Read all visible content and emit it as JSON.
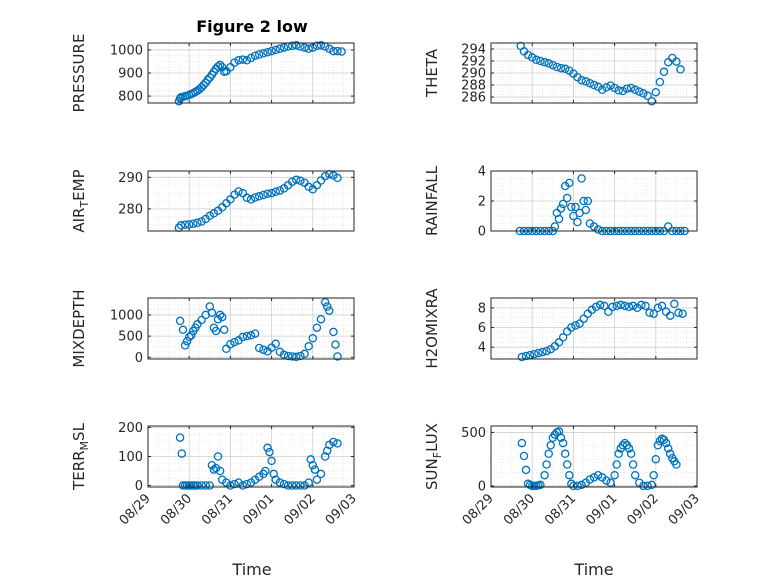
{
  "figure": {
    "title": "Figure 2 low",
    "xlabel": "Time",
    "xticks": [
      "08/29",
      "08/30",
      "08/31",
      "09/01",
      "09/02",
      "09/03"
    ],
    "marker_color": "#0072BD"
  },
  "chart_data": [
    {
      "type": "scatter",
      "ylabel": "PRESSURE",
      "ylabel_sub": "",
      "xlim": [
        0,
        5
      ],
      "ylim": [
        770,
        1030
      ],
      "yticks": [
        800,
        900,
        1000
      ],
      "series": [
        {
          "x": [
            0.75,
            0.78,
            0.8,
            0.85,
            0.9,
            0.95,
            1.0,
            1.05,
            1.1,
            1.15,
            1.2,
            1.25,
            1.3,
            1.35,
            1.4,
            1.45,
            1.5,
            1.55,
            1.6,
            1.65,
            1.7,
            1.75,
            1.8,
            1.85,
            1.9,
            2.0,
            2.1,
            2.2,
            2.3,
            2.4,
            2.5,
            2.6,
            2.7,
            2.8,
            2.9,
            3.0,
            3.1,
            3.2,
            3.3,
            3.4,
            3.5,
            3.6,
            3.7,
            3.8,
            3.9,
            4.0,
            4.1,
            4.2,
            4.3,
            4.4,
            4.5,
            4.6,
            4.7
          ],
          "y": [
            778,
            790,
            795,
            797,
            799,
            801,
            805,
            809,
            813,
            818,
            823,
            830,
            838,
            848,
            858,
            870,
            880,
            892,
            905,
            918,
            928,
            935,
            925,
            905,
            908,
            925,
            945,
            955,
            958,
            955,
            965,
            975,
            980,
            985,
            990,
            995,
            1000,
            1005,
            1010,
            1015,
            1018,
            1020,
            1015,
            1010,
            1005,
            1010,
            1018,
            1020,
            1015,
            1005,
            995,
            995,
            993
          ]
        }
      ]
    },
    {
      "type": "scatter",
      "ylabel": "THETA",
      "ylabel_sub": "",
      "xlim": [
        0,
        5
      ],
      "ylim": [
        285,
        295
      ],
      "yticks": [
        286,
        288,
        290,
        292,
        294
      ],
      "series": [
        {
          "x": [
            0.72,
            0.8,
            0.9,
            1.0,
            1.1,
            1.2,
            1.3,
            1.4,
            1.5,
            1.6,
            1.7,
            1.8,
            1.9,
            2.0,
            2.1,
            2.2,
            2.3,
            2.4,
            2.5,
            2.6,
            2.7,
            2.8,
            2.9,
            3.0,
            3.1,
            3.2,
            3.3,
            3.4,
            3.5,
            3.6,
            3.7,
            3.8,
            3.9,
            4.0,
            4.1,
            4.2,
            4.3,
            4.4,
            4.5,
            4.6
          ],
          "y": [
            294.5,
            293.6,
            293.0,
            292.6,
            292.2,
            292.0,
            291.8,
            291.6,
            291.3,
            291.0,
            290.8,
            290.7,
            290.4,
            289.9,
            289.3,
            288.8,
            288.6,
            288.3,
            288.0,
            287.7,
            287.2,
            287.6,
            287.9,
            287.5,
            287.1,
            287.0,
            287.4,
            287.5,
            287.2,
            286.9,
            286.6,
            286.2,
            285.3,
            286.8,
            288.5,
            290.2,
            291.8,
            292.5,
            291.9,
            290.6
          ]
        }
      ]
    },
    {
      "type": "scatter",
      "ylabel": "AIR",
      "ylabel_sub": "T",
      "ylabel_rest": "EMP",
      "xlim": [
        0,
        5
      ],
      "ylim": [
        273,
        292
      ],
      "yticks": [
        280,
        290
      ],
      "series": [
        {
          "x": [
            0.75,
            0.8,
            0.9,
            1.0,
            1.1,
            1.2,
            1.3,
            1.4,
            1.5,
            1.6,
            1.7,
            1.8,
            1.9,
            2.0,
            2.1,
            2.2,
            2.3,
            2.4,
            2.5,
            2.6,
            2.7,
            2.8,
            2.9,
            3.0,
            3.1,
            3.2,
            3.3,
            3.4,
            3.5,
            3.6,
            3.7,
            3.8,
            3.9,
            4.0,
            4.1,
            4.2,
            4.3,
            4.4,
            4.5,
            4.6
          ],
          "y": [
            274.0,
            274.8,
            275.0,
            275.1,
            275.3,
            275.6,
            276.0,
            276.8,
            277.8,
            278.6,
            279.4,
            280.5,
            281.8,
            283.0,
            284.5,
            285.5,
            285.0,
            283.5,
            283.0,
            283.6,
            284.0,
            284.4,
            284.8,
            285.0,
            285.4,
            285.8,
            286.5,
            287.5,
            288.6,
            289.2,
            288.9,
            288.3,
            287.0,
            286.2,
            287.5,
            289.0,
            290.4,
            291.0,
            290.6,
            289.8
          ]
        }
      ]
    },
    {
      "type": "scatter",
      "ylabel": "RAINFALL",
      "ylabel_sub": "",
      "xlim": [
        0,
        5
      ],
      "ylim": [
        0,
        4
      ],
      "yticks": [
        0,
        2,
        4
      ],
      "series": [
        {
          "x": [
            0.7,
            0.8,
            0.9,
            1.0,
            1.1,
            1.2,
            1.3,
            1.4,
            1.5,
            1.55,
            1.6,
            1.65,
            1.7,
            1.75,
            1.8,
            1.85,
            1.9,
            1.95,
            2.0,
            2.05,
            2.1,
            2.15,
            2.2,
            2.25,
            2.3,
            2.35,
            2.4,
            2.5,
            2.6,
            2.7,
            2.8,
            2.9,
            3.0,
            3.1,
            3.2,
            3.3,
            3.4,
            3.5,
            3.6,
            3.7,
            3.8,
            3.9,
            4.0,
            4.1,
            4.2,
            4.3,
            4.4,
            4.5,
            4.6,
            4.7
          ],
          "y": [
            0,
            0,
            0,
            0,
            0,
            0,
            0,
            0,
            0,
            0.3,
            1.2,
            0.8,
            1.5,
            1.8,
            3.0,
            2.2,
            3.2,
            1.6,
            1.0,
            1.6,
            0.6,
            1.2,
            3.5,
            2.0,
            1.4,
            2.0,
            0.5,
            0.3,
            0.1,
            0,
            0,
            0,
            0,
            0,
            0,
            0,
            0,
            0,
            0,
            0,
            0,
            0,
            0,
            0,
            0,
            0.3,
            0,
            0,
            0,
            0
          ]
        }
      ]
    },
    {
      "type": "scatter",
      "ylabel": "MIXDEPTH",
      "ylabel_sub": "",
      "xlim": [
        0,
        5
      ],
      "ylim": [
        -40,
        1400
      ],
      "yticks": [
        0,
        500,
        1000
      ],
      "series": [
        {
          "x": [
            0.78,
            0.85,
            0.9,
            0.95,
            1.0,
            1.05,
            1.1,
            1.15,
            1.2,
            1.3,
            1.4,
            1.5,
            1.55,
            1.6,
            1.65,
            1.7,
            1.75,
            1.8,
            1.85,
            1.9,
            2.0,
            2.1,
            2.2,
            2.3,
            2.4,
            2.5,
            2.6,
            2.7,
            2.8,
            2.9,
            3.0,
            3.1,
            3.2,
            3.3,
            3.4,
            3.5,
            3.6,
            3.7,
            3.8,
            3.9,
            4.0,
            4.1,
            4.2,
            4.3,
            4.35,
            4.4,
            4.5,
            4.55,
            4.6
          ],
          "y": [
            860,
            650,
            280,
            380,
            480,
            520,
            620,
            700,
            780,
            880,
            1000,
            1200,
            1050,
            700,
            620,
            900,
            1000,
            950,
            650,
            200,
            310,
            360,
            400,
            480,
            500,
            520,
            560,
            220,
            180,
            140,
            230,
            320,
            130,
            60,
            30,
            20,
            10,
            30,
            80,
            260,
            450,
            700,
            900,
            1300,
            1200,
            1100,
            600,
            300,
            20
          ]
        }
      ]
    },
    {
      "type": "scatter",
      "ylabel": "H2OMIXRA",
      "ylabel_sub": "",
      "xlim": [
        0,
        5
      ],
      "ylim": [
        2.8,
        9.0
      ],
      "yticks": [
        4,
        6,
        8
      ],
      "series": [
        {
          "x": [
            0.75,
            0.85,
            0.95,
            1.05,
            1.15,
            1.25,
            1.35,
            1.45,
            1.55,
            1.65,
            1.75,
            1.85,
            1.95,
            2.05,
            2.15,
            2.25,
            2.35,
            2.45,
            2.55,
            2.65,
            2.75,
            2.85,
            2.95,
            3.05,
            3.15,
            3.25,
            3.35,
            3.45,
            3.55,
            3.65,
            3.75,
            3.85,
            3.95,
            4.05,
            4.15,
            4.25,
            4.35,
            4.45,
            4.55,
            4.65
          ],
          "y": [
            3.0,
            3.1,
            3.2,
            3.3,
            3.4,
            3.5,
            3.6,
            3.8,
            4.1,
            4.5,
            5.0,
            5.6,
            6.0,
            6.2,
            6.4,
            6.9,
            7.4,
            7.8,
            8.1,
            8.3,
            8.2,
            7.6,
            8.1,
            8.2,
            8.3,
            8.2,
            8.1,
            8.2,
            8.0,
            8.3,
            8.2,
            7.5,
            7.4,
            8.0,
            8.2,
            7.6,
            7.2,
            8.4,
            7.5,
            7.4
          ]
        }
      ]
    },
    {
      "type": "scatter",
      "ylabel": "TERR",
      "ylabel_sub": "M",
      "ylabel_rest": "SL",
      "xlim": [
        0,
        5
      ],
      "ylim": [
        -5,
        205
      ],
      "yticks": [
        0,
        100,
        200
      ],
      "series": [
        {
          "x": [
            0.78,
            0.82,
            0.85,
            0.9,
            0.95,
            1.0,
            1.05,
            1.1,
            1.15,
            1.2,
            1.3,
            1.4,
            1.5,
            1.55,
            1.6,
            1.65,
            1.7,
            1.75,
            1.8,
            1.9,
            2.0,
            2.1,
            2.2,
            2.3,
            2.4,
            2.5,
            2.6,
            2.7,
            2.8,
            2.85,
            2.9,
            2.95,
            3.0,
            3.05,
            3.1,
            3.2,
            3.3,
            3.4,
            3.5,
            3.6,
            3.7,
            3.8,
            3.9,
            3.95,
            4.0,
            4.05,
            4.1,
            4.2,
            4.3,
            4.35,
            4.4,
            4.5,
            4.6
          ],
          "y": [
            165,
            110,
            0,
            0,
            0,
            0,
            0,
            0,
            0,
            0,
            0,
            0,
            0,
            70,
            55,
            60,
            100,
            50,
            20,
            10,
            0,
            5,
            10,
            0,
            5,
            10,
            20,
            30,
            40,
            50,
            130,
            115,
            85,
            40,
            20,
            10,
            5,
            0,
            0,
            0,
            0,
            0,
            10,
            90,
            70,
            55,
            20,
            40,
            100,
            120,
            140,
            150,
            145
          ]
        }
      ]
    },
    {
      "type": "scatter",
      "ylabel": "SUN",
      "ylabel_sub": "F",
      "ylabel_rest": "LUX",
      "xlim": [
        0,
        5
      ],
      "ylim": [
        -10,
        560
      ],
      "yticks": [
        0,
        500
      ],
      "series": [
        {
          "x": [
            0.75,
            0.8,
            0.85,
            0.9,
            0.95,
            1.0,
            1.05,
            1.1,
            1.15,
            1.2,
            1.3,
            1.35,
            1.4,
            1.45,
            1.5,
            1.55,
            1.6,
            1.65,
            1.7,
            1.75,
            1.8,
            1.85,
            1.9,
            1.95,
            2.0,
            2.1,
            2.2,
            2.3,
            2.4,
            2.5,
            2.6,
            2.7,
            2.8,
            2.9,
            3.0,
            3.05,
            3.1,
            3.15,
            3.2,
            3.25,
            3.3,
            3.35,
            3.4,
            3.45,
            3.5,
            3.6,
            3.7,
            3.8,
            3.9,
            3.95,
            4.0,
            4.05,
            4.1,
            4.15,
            4.2,
            4.25,
            4.3,
            4.35,
            4.4,
            4.45,
            4.5
          ],
          "y": [
            400,
            280,
            150,
            20,
            10,
            0,
            0,
            0,
            5,
            10,
            100,
            200,
            300,
            380,
            450,
            480,
            500,
            510,
            450,
            400,
            300,
            200,
            100,
            20,
            0,
            0,
            10,
            30,
            60,
            80,
            100,
            80,
            50,
            30,
            100,
            200,
            300,
            350,
            380,
            400,
            380,
            350,
            300,
            200,
            100,
            30,
            0,
            0,
            10,
            100,
            250,
            380,
            420,
            440,
            430,
            400,
            350,
            300,
            260,
            230,
            200
          ]
        }
      ]
    }
  ]
}
